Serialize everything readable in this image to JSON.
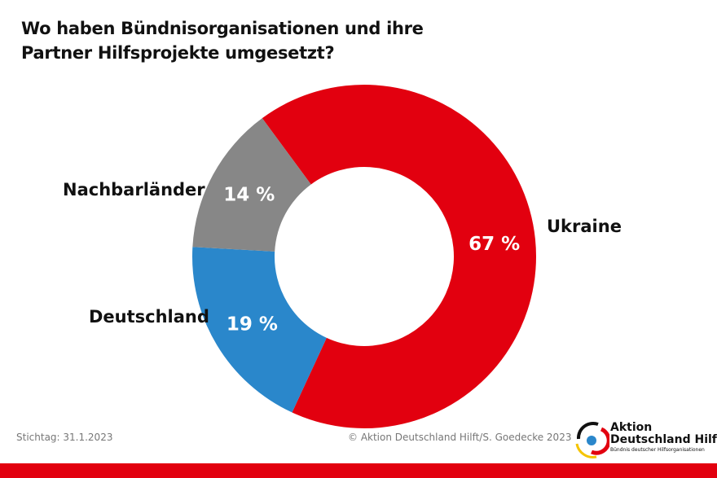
{
  "chart_data": {
    "type": "pie",
    "variant": "donut",
    "title": "Wo haben Bündnisorganisationen und ihre Partner Hilfsprojekte umgesetzt?",
    "title_lines": [
      "Wo haben Bündnisorganisationen und ihre",
      "Partner Hilfsprojekte umgesetzt?"
    ],
    "start_angle_deg": -36.4,
    "slices": [
      {
        "name": "Ukraine",
        "value": 67,
        "label": "67 %",
        "color": "#e2000f"
      },
      {
        "name": "Deutschland",
        "value": 19,
        "label": "19 %",
        "color": "#2a87cb"
      },
      {
        "name": "Nachbarländer",
        "value": 14,
        "label": "14 %",
        "color": "#878787"
      }
    ]
  },
  "footer": {
    "date": "Stichtag: 31.1.2023",
    "credit": "© Aktion Deutschland Hilft/S. Goedecke 2023"
  },
  "logo": {
    "line1": "Aktion",
    "line2": "Deutschland Hilft",
    "line3": "Bündnis deutscher Hilfsorganisationen"
  }
}
